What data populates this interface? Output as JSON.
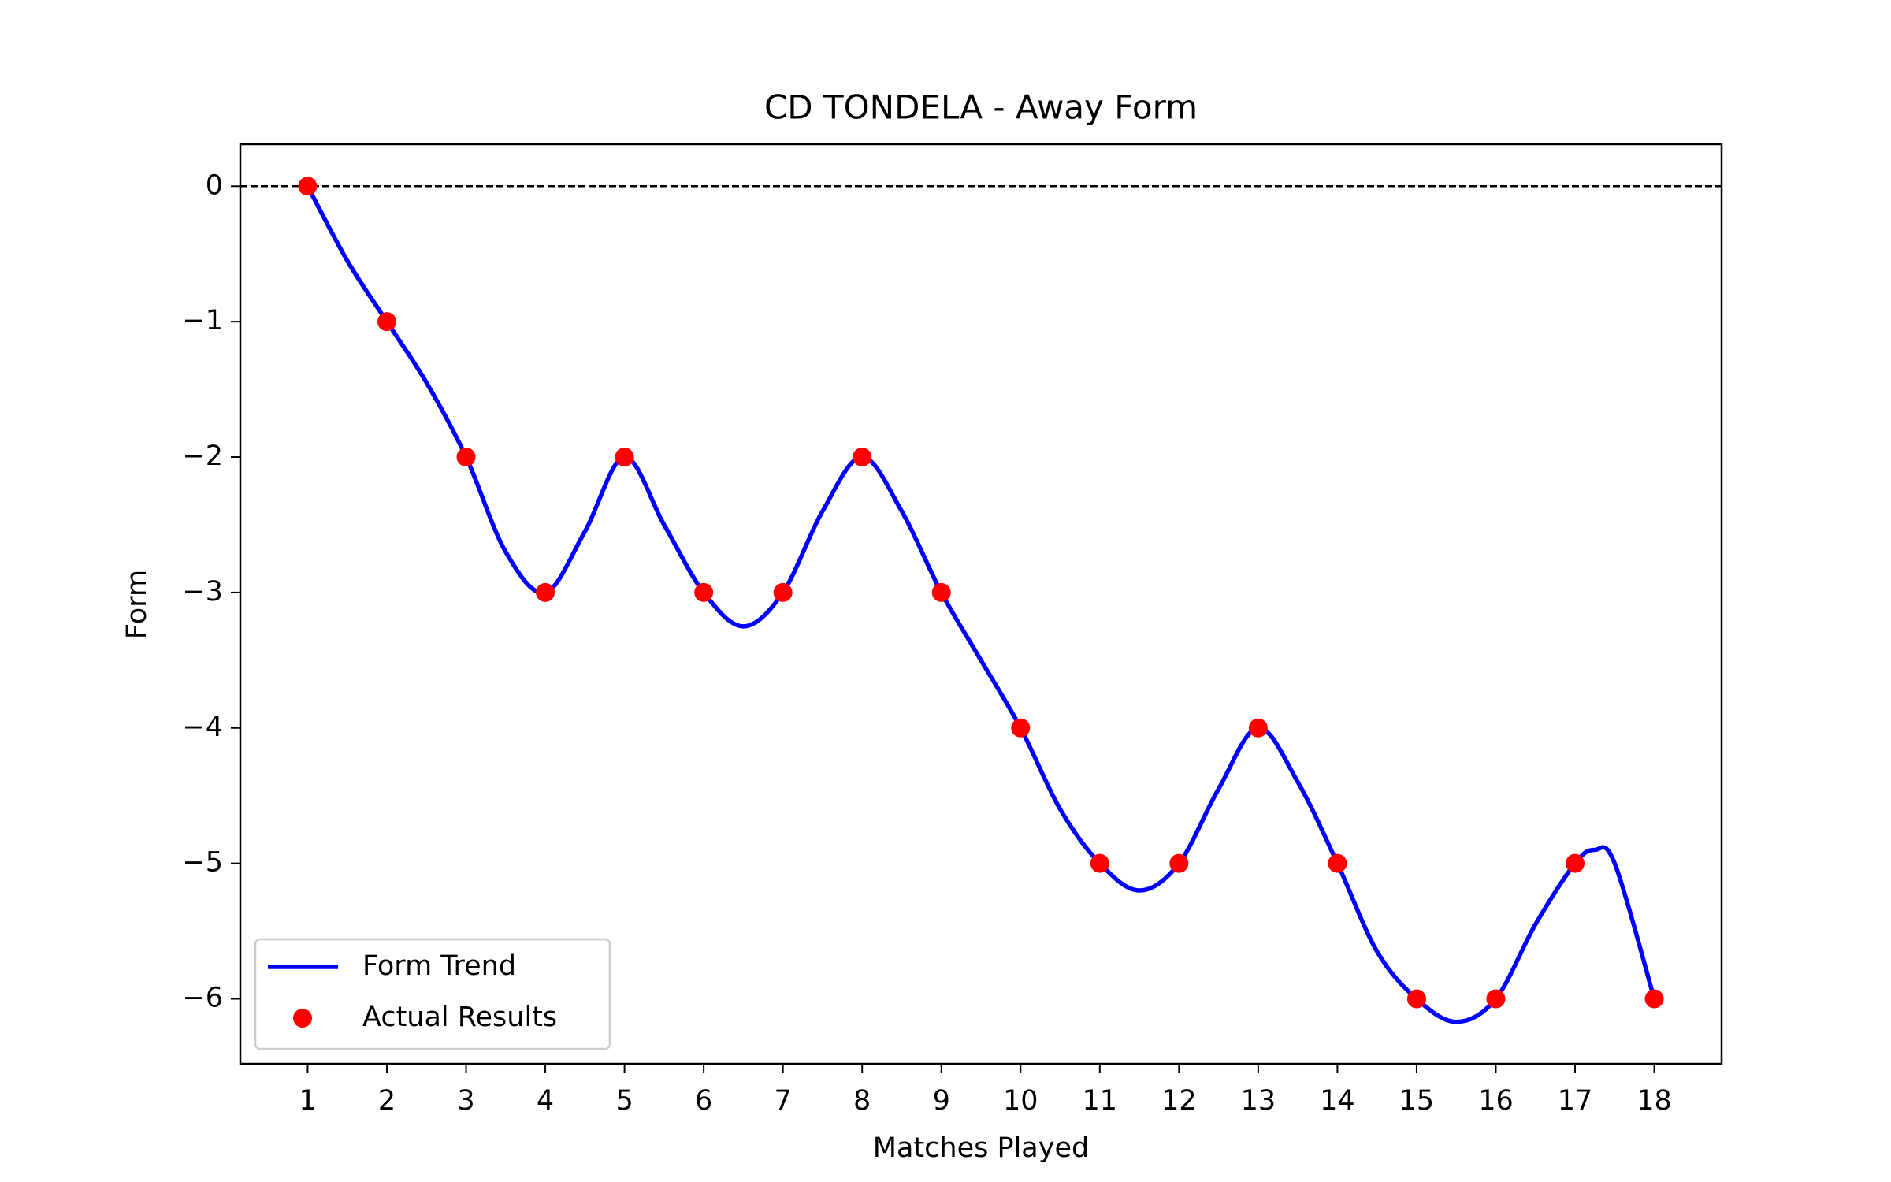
{
  "chart_data": {
    "type": "line",
    "title": "CD TONDELA - Away Form",
    "x_label": "Matches Played",
    "y_label": "Form",
    "xlim": [
      0.15,
      18.85
    ],
    "ylim": [
      -6.48,
      0.31
    ],
    "xticks": [
      1,
      2,
      3,
      4,
      5,
      6,
      7,
      8,
      9,
      10,
      11,
      12,
      13,
      14,
      15,
      16,
      17,
      18
    ],
    "yticks": [
      {
        "value": 0,
        "label": "0"
      },
      {
        "value": -1,
        "label": "−1"
      },
      {
        "value": -2,
        "label": "−2"
      },
      {
        "value": -3,
        "label": "−3"
      },
      {
        "value": -4,
        "label": "−4"
      },
      {
        "value": -5,
        "label": "−5"
      },
      {
        "value": -6,
        "label": "−6"
      }
    ],
    "reference_line": 0,
    "legend": "lower left",
    "series": [
      {
        "name": "Form Trend",
        "kind": "line",
        "color": "#0000ff",
        "x": [
          1,
          1.5,
          2,
          2.5,
          3,
          3.5,
          4,
          4.5,
          5,
          5.5,
          6,
          6.5,
          7,
          7.5,
          8,
          8.5,
          9,
          9.5,
          10,
          10.5,
          11,
          11.5,
          12,
          12.5,
          13,
          13.5,
          14,
          14.5,
          15,
          15.5,
          16,
          16.5,
          17,
          17.25,
          17.5,
          18
        ],
        "values": [
          0,
          -0.55,
          -1,
          -1.45,
          -2,
          -2.7,
          -3,
          -2.55,
          -2,
          -2.5,
          -3,
          -3.25,
          -3,
          -2.4,
          -2,
          -2.4,
          -3,
          -3.5,
          -4,
          -4.6,
          -5,
          -5.2,
          -5,
          -4.45,
          -4,
          -4.4,
          -5,
          -5.65,
          -6,
          -6.17,
          -6,
          -5.45,
          -5,
          -4.9,
          -5.0,
          -6
        ]
      },
      {
        "name": "Actual Results",
        "kind": "scatter",
        "color": "#ff0000",
        "x": [
          1,
          2,
          3,
          4,
          5,
          6,
          7,
          8,
          9,
          10,
          11,
          12,
          13,
          14,
          15,
          16,
          17,
          18
        ],
        "values": [
          0,
          -1,
          -2,
          -3,
          -2,
          -3,
          -3,
          -2,
          -3,
          -4,
          -5,
          -5,
          -4,
          -5,
          -6,
          -6,
          -5,
          -6
        ]
      }
    ]
  }
}
